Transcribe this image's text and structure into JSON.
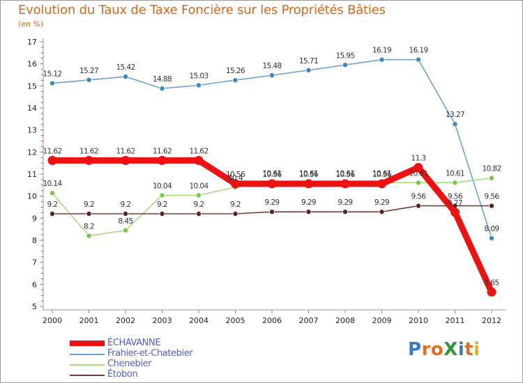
{
  "title": "Evolution du Taux de Taxe Foncière sur les Propriétés Bâties",
  "unit": "(en %)",
  "logo": {
    "text": "ProXiti",
    "letters": [
      {
        "ch": "P",
        "color": "#3a78c8"
      },
      {
        "ch": "r",
        "color": "#e07020"
      },
      {
        "ch": "o",
        "color": "#e07020"
      },
      {
        "ch": "X",
        "color": "#2a9a3a"
      },
      {
        "ch": "i",
        "color": "#3a78c8"
      },
      {
        "ch": "t",
        "color": "#e07020"
      },
      {
        "ch": "i",
        "color": "#e0b020"
      }
    ]
  },
  "chart_data": {
    "type": "line",
    "title": "Evolution du Taux de Taxe Foncière sur les Propriétés Bâties",
    "ylabel": "(en %)",
    "xlabel": "",
    "ylim": [
      5,
      17
    ],
    "yticks": [
      5,
      6,
      7,
      8,
      9,
      10,
      11,
      12,
      13,
      14,
      15,
      16,
      17
    ],
    "x": [
      "2000",
      "2001",
      "2002",
      "2003",
      "2004",
      "2005",
      "2006",
      "2007",
      "2008",
      "2009",
      "2010",
      "2011",
      "2012"
    ],
    "grid": false,
    "legend": "bottom-left",
    "series": [
      {
        "name": "Frahier-et-Chatebier",
        "color": "#6aa2d8",
        "marker": "#3d86c6",
        "values": [
          15.12,
          15.27,
          15.42,
          14.88,
          15.03,
          15.26,
          15.48,
          15.71,
          15.95,
          16.19,
          16.19,
          13.27,
          8.09
        ],
        "labels": [
          "15.12",
          "15.27",
          "15.42",
          "14.88",
          "15.03",
          "15.26",
          "15.48",
          "15.71",
          "15.95",
          "16.19",
          "16.19",
          "13.27",
          "8.09"
        ]
      },
      {
        "name": "Chenebier",
        "color": "#a6dc7c",
        "marker": "#7cc444",
        "values": [
          10.14,
          8.2,
          8.45,
          10.04,
          10.04,
          10.4,
          10.61,
          10.61,
          10.61,
          10.61,
          10.61,
          10.61,
          10.82
        ],
        "labels": [
          "10.14",
          "8.2",
          "8.45",
          "10.04",
          "10.04",
          "10.4",
          "10.61",
          "10.61",
          "10.61",
          "10.61",
          "10.61",
          "10.61",
          "10.82"
        ]
      },
      {
        "name": "Étobon",
        "color": "#7a3a3a",
        "marker": "#5e2222",
        "values": [
          9.2,
          9.2,
          9.2,
          9.2,
          9.2,
          9.2,
          9.29,
          9.29,
          9.29,
          9.29,
          9.56,
          9.56,
          9.56
        ],
        "labels": [
          "9.2",
          "9.2",
          "9.2",
          "9.2",
          "9.2",
          "9.2",
          "9.29",
          "9.29",
          "9.29",
          "9.29",
          "9.56",
          "9.56",
          "9.56"
        ]
      },
      {
        "name": "ÉCHAVANNE",
        "color": "#ee1111",
        "marker": "#ee1111",
        "bold": true,
        "values": [
          11.62,
          11.62,
          11.62,
          11.62,
          11.62,
          10.56,
          10.56,
          10.56,
          10.56,
          10.56,
          11.3,
          9.27,
          5.65
        ],
        "labels": [
          "11.62",
          "11.62",
          "11.62",
          "11.62",
          "11.62",
          "10.56",
          "10.56",
          "10.56",
          "10.56",
          "10.56",
          "11.3",
          "9.27",
          "5.65"
        ]
      }
    ]
  }
}
